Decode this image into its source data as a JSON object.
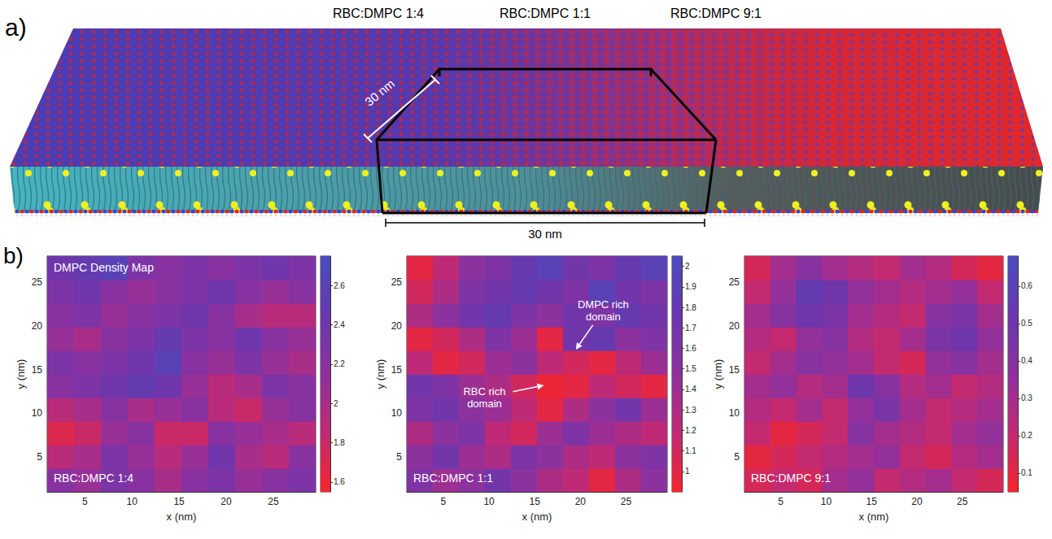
{
  "panel_a": {
    "letter": "a)",
    "labels": [
      "RBC:DMPC 1:4",
      "RBC:DMPC 1:1",
      "RBC:DMPC 9:1"
    ],
    "depth_label": "30 nm",
    "width_label": "30 nm"
  },
  "panel_b_letter": "b)",
  "chart_data": [
    {
      "type": "heatmap",
      "title": "DMPC Density Map",
      "label": "RBC:DMPC 1:4",
      "xlabel": "x (nm)",
      "ylabel": "y (nm)",
      "grid": false,
      "xlim": [
        1,
        29.5
      ],
      "ylim": [
        1,
        28
      ],
      "xticks": [
        5,
        10,
        15,
        20,
        25
      ],
      "yticks": [
        5,
        10,
        15,
        20,
        25
      ],
      "x_edges": [
        1,
        3.85,
        6.7,
        9.55,
        12.4,
        15.25,
        18.1,
        20.95,
        23.8,
        26.65,
        29.5
      ],
      "y_edges": [
        1,
        3.7,
        6.4,
        9.1,
        11.8,
        14.5,
        17.2,
        19.9,
        22.6,
        25.3,
        28
      ],
      "density": [
        [
          2.2,
          2.1,
          2.3,
          2.2,
          2.0,
          2.2,
          2.3,
          2.1,
          2.2,
          2.3
        ],
        [
          1.9,
          2.0,
          2.3,
          2.1,
          1.9,
          2.1,
          2.4,
          2.0,
          1.9,
          2.2
        ],
        [
          1.7,
          1.8,
          2.1,
          2.2,
          1.8,
          1.8,
          2.2,
          2.1,
          2.0,
          1.9
        ],
        [
          1.9,
          2.0,
          2.2,
          2.0,
          2.1,
          2.2,
          1.9,
          1.8,
          2.1,
          2.2
        ],
        [
          2.2,
          2.3,
          2.4,
          2.5,
          2.4,
          2.1,
          1.9,
          2.0,
          2.3,
          2.2
        ],
        [
          2.3,
          2.2,
          2.3,
          2.4,
          2.6,
          2.2,
          2.1,
          2.3,
          2.1,
          2.0
        ],
        [
          2.1,
          2.0,
          2.2,
          2.3,
          2.5,
          2.3,
          2.2,
          2.4,
          2.2,
          2.1
        ],
        [
          2.2,
          2.3,
          2.1,
          2.2,
          2.3,
          2.4,
          2.2,
          2.0,
          1.9,
          1.9
        ],
        [
          2.3,
          2.4,
          2.2,
          2.1,
          2.2,
          2.3,
          2.4,
          2.2,
          2.1,
          2.2
        ],
        [
          2.4,
          2.5,
          2.6,
          2.3,
          2.2,
          2.3,
          2.2,
          2.3,
          2.4,
          2.3
        ]
      ],
      "colorbar": {
        "range": [
          1.55,
          2.75
        ],
        "ticks": [
          1.6,
          1.8,
          2,
          2.2,
          2.4,
          2.6
        ]
      }
    },
    {
      "type": "heatmap",
      "label": "RBC:DMPC 1:1",
      "xlabel": "x (nm)",
      "ylabel": "y (nm)",
      "grid": false,
      "xlim": [
        1,
        29.5
      ],
      "ylim": [
        1,
        28
      ],
      "xticks": [
        5,
        10,
        15,
        20,
        25
      ],
      "yticks": [
        5,
        10,
        15,
        20,
        25
      ],
      "x_edges": [
        1,
        3.85,
        6.7,
        9.55,
        12.4,
        15.25,
        18.1,
        20.95,
        23.8,
        26.65,
        29.5
      ],
      "y_edges": [
        1,
        3.7,
        6.4,
        9.1,
        11.8,
        14.5,
        17.2,
        19.9,
        22.6,
        25.3,
        28
      ],
      "density": [
        [
          1.6,
          1.4,
          1.5,
          1.7,
          1.5,
          1.3,
          1.2,
          1.0,
          1.3,
          1.5
        ],
        [
          1.5,
          1.7,
          1.4,
          1.3,
          1.6,
          1.5,
          1.3,
          1.2,
          1.5,
          1.6
        ],
        [
          1.3,
          1.5,
          1.6,
          1.2,
          1.1,
          1.4,
          1.6,
          1.4,
          1.3,
          1.2
        ],
        [
          1.6,
          1.7,
          1.5,
          1.4,
          1.2,
          1.0,
          1.3,
          1.5,
          1.7,
          1.4
        ],
        [
          1.7,
          1.6,
          1.4,
          1.3,
          1.1,
          0.95,
          1.0,
          1.2,
          1.1,
          1.0
        ],
        [
          1.2,
          1.0,
          1.1,
          1.4,
          1.5,
          1.2,
          1.1,
          1.0,
          1.2,
          1.4
        ],
        [
          1.0,
          1.1,
          1.3,
          1.6,
          1.4,
          1.0,
          1.7,
          1.8,
          1.5,
          1.6
        ],
        [
          1.3,
          1.5,
          1.7,
          1.8,
          1.6,
          1.5,
          1.7,
          1.6,
          1.8,
          1.7
        ],
        [
          1.1,
          1.3,
          1.6,
          1.7,
          1.8,
          1.7,
          1.6,
          1.9,
          1.7,
          1.6
        ],
        [
          1.0,
          1.2,
          1.5,
          1.6,
          1.8,
          1.9,
          1.7,
          1.6,
          1.8,
          1.9
        ]
      ],
      "colorbar": {
        "range": [
          0.9,
          2.05
        ],
        "ticks": [
          1,
          1.1,
          1.2,
          1.3,
          1.4,
          1.5,
          1.6,
          1.7,
          1.8,
          1.9,
          2
        ]
      },
      "annotations": [
        {
          "text": "DMPC rich domain",
          "xy": [
            19.5,
            17.3
          ],
          "xytext": [
            22.5,
            21.8
          ]
        },
        {
          "text": "RBC rich domain",
          "xy": [
            16,
            13.2
          ],
          "xytext": [
            9.5,
            11.8
          ]
        }
      ]
    },
    {
      "type": "heatmap",
      "label": "RBC:DMPC 9:1",
      "xlabel": "x (nm)",
      "ylabel": "y (nm)",
      "grid": false,
      "xlim": [
        1,
        29.5
      ],
      "ylim": [
        1,
        28
      ],
      "xticks": [
        5,
        10,
        15,
        20,
        25
      ],
      "yticks": [
        5,
        10,
        15,
        20,
        25
      ],
      "x_edges": [
        1,
        3.85,
        6.7,
        9.55,
        12.4,
        15.25,
        18.1,
        20.95,
        23.8,
        26.65,
        29.5
      ],
      "y_edges": [
        1,
        3.7,
        6.4,
        9.1,
        11.8,
        14.5,
        17.2,
        19.9,
        22.6,
        25.3,
        28
      ],
      "density": [
        [
          0.15,
          0.2,
          0.15,
          0.3,
          0.35,
          0.2,
          0.25,
          0.3,
          0.2,
          0.15
        ],
        [
          0.1,
          0.15,
          0.2,
          0.25,
          0.3,
          0.35,
          0.2,
          0.15,
          0.25,
          0.3
        ],
        [
          0.2,
          0.1,
          0.15,
          0.2,
          0.4,
          0.3,
          0.25,
          0.2,
          0.3,
          0.35
        ],
        [
          0.25,
          0.2,
          0.3,
          0.2,
          0.35,
          0.45,
          0.3,
          0.2,
          0.25,
          0.3
        ],
        [
          0.3,
          0.35,
          0.25,
          0.3,
          0.5,
          0.4,
          0.25,
          0.3,
          0.2,
          0.25
        ],
        [
          0.2,
          0.3,
          0.4,
          0.35,
          0.3,
          0.2,
          0.15,
          0.35,
          0.4,
          0.3
        ],
        [
          0.25,
          0.2,
          0.35,
          0.4,
          0.25,
          0.2,
          0.3,
          0.45,
          0.5,
          0.35
        ],
        [
          0.3,
          0.4,
          0.5,
          0.45,
          0.3,
          0.25,
          0.2,
          0.4,
          0.45,
          0.3
        ],
        [
          0.2,
          0.35,
          0.55,
          0.5,
          0.35,
          0.3,
          0.25,
          0.3,
          0.35,
          0.2
        ],
        [
          0.15,
          0.3,
          0.4,
          0.3,
          0.25,
          0.2,
          0.3,
          0.25,
          0.15,
          0.1
        ]
      ],
      "colorbar": {
        "range": [
          0.05,
          0.68
        ],
        "ticks": [
          0.1,
          0.2,
          0.3,
          0.4,
          0.5,
          0.6
        ]
      }
    }
  ]
}
